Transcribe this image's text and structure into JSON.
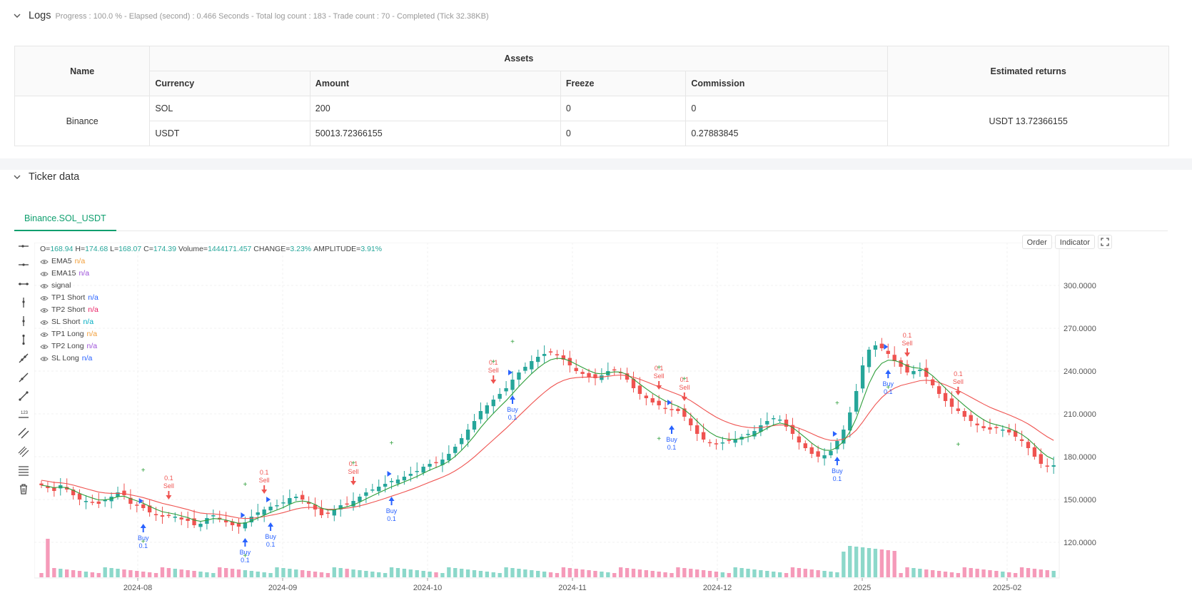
{
  "logs": {
    "title": "Logs",
    "meta": "Progress : 100.0 % - Elapsed (second) : 0.466  Seconds - Total log count : 183 - Trade count : 70 - Completed (Tick 32.38KB)"
  },
  "assets_table": {
    "col_name": "Name",
    "col_assets": "Assets",
    "col_returns": "Estimated returns",
    "col_currency": "Currency",
    "col_amount": "Amount",
    "col_freeze": "Freeze",
    "col_commission": "Commission",
    "exchange": "Binance",
    "rows": [
      {
        "currency": "SOL",
        "amount": "200",
        "freeze": "0",
        "commission": "0"
      },
      {
        "currency": "USDT",
        "amount": "50013.72366155",
        "freeze": "0",
        "commission": "0.27883845"
      }
    ],
    "estimated_returns": "USDT 13.72366155"
  },
  "ticker": {
    "title": "Ticker data",
    "tab": "Binance.SOL_USDT",
    "buttons": {
      "order": "Order",
      "indicator": "Indicator"
    }
  },
  "legend": {
    "ohlc": {
      "o": "168.94",
      "h": "174.68",
      "l": "168.07",
      "c": "174.39",
      "vol": "1444171.457",
      "change": "3.23%",
      "amplitude": "3.91%"
    },
    "items": [
      {
        "name": "EMA5",
        "value": "n/a",
        "color": "#f29e38"
      },
      {
        "name": "EMA15",
        "value": "n/a",
        "color": "#9c4fd9"
      },
      {
        "name": "signal",
        "value": "",
        "color": "#444444"
      },
      {
        "name": "TP1 Short",
        "value": "n/a",
        "color": "#2962ff"
      },
      {
        "name": "TP2 Short",
        "value": "n/a",
        "color": "#e91e63"
      },
      {
        "name": "SL Short",
        "value": "n/a",
        "color": "#00acc1"
      },
      {
        "name": "TP1 Long",
        "value": "n/a",
        "color": "#f29e38"
      },
      {
        "name": "TP2 Long",
        "value": "n/a",
        "color": "#9c4fd9"
      },
      {
        "name": "SL Long",
        "value": "n/a",
        "color": "#2962ff"
      }
    ]
  },
  "colors": {
    "up": "#26a69a",
    "down": "#ef5350",
    "ema_fast": "#26a69a",
    "ema_slow": "#ef5350",
    "buy": "#2962ff",
    "sell": "#ef5350"
  },
  "chart_data": {
    "type": "candlestick",
    "symbol": "Binance.SOL_USDT",
    "y_ticks": [
      "120.0000",
      "150.0000",
      "180.0000",
      "210.0000",
      "240.0000",
      "270.0000",
      "300.0000"
    ],
    "x_ticks": [
      "2024-08",
      "2024-09",
      "2024-10",
      "2024-11",
      "2024-12",
      "2025",
      "2025-02"
    ],
    "ylim": [
      100,
      320
    ],
    "close_series": [
      160,
      158,
      156,
      160,
      157,
      153,
      150,
      149,
      148,
      147,
      150,
      152,
      155,
      153,
      147,
      146,
      144,
      141,
      139,
      138,
      139,
      138,
      136,
      135,
      132,
      133,
      137,
      139,
      136,
      134,
      132,
      131,
      134,
      138,
      141,
      143,
      145,
      146,
      148,
      151,
      152,
      150,
      147,
      143,
      139,
      140,
      143,
      146,
      147,
      149,
      152,
      155,
      157,
      159,
      161,
      163,
      164,
      166,
      168,
      170,
      173,
      175,
      176,
      178,
      182,
      187,
      193,
      199,
      205,
      212,
      216,
      220,
      224,
      228,
      234,
      239,
      243,
      247,
      250,
      252,
      253,
      251,
      248,
      244,
      240,
      238,
      236,
      235,
      237,
      240,
      241,
      239,
      234,
      228,
      224,
      221,
      218,
      216,
      214,
      213,
      212,
      208,
      202,
      196,
      192,
      190,
      189,
      190,
      191,
      192,
      194,
      196,
      198,
      202,
      205,
      207,
      206,
      201,
      196,
      190,
      186,
      182,
      180,
      181,
      184,
      191,
      199,
      211,
      226,
      244,
      255,
      258,
      256,
      252,
      247,
      243,
      239,
      240,
      241,
      236,
      230,
      224,
      219,
      215,
      212,
      208,
      205,
      202,
      200,
      199,
      200,
      199,
      197,
      194,
      191,
      186,
      180,
      175,
      173,
      174
    ],
    "ema5_range": [
      130,
      256
    ],
    "ema15_range": [
      133,
      246
    ],
    "annotations": [
      {
        "label": "Buy",
        "qty": "0.1"
      },
      {
        "label": "Sell",
        "qty": "0.1"
      }
    ]
  }
}
